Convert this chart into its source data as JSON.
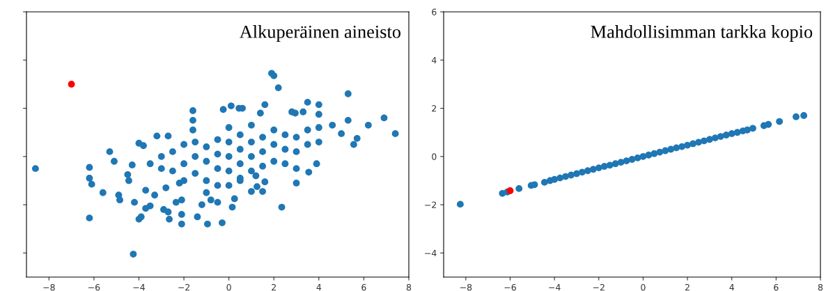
{
  "chart_data": [
    {
      "type": "scatter",
      "title": "Alkuperäinen aineisto",
      "xlim": [
        -9,
        8
      ],
      "ylim": [
        -5,
        6
      ],
      "xticks": [
        -8,
        -6,
        -4,
        -2,
        0,
        2,
        4,
        6,
        8
      ],
      "yticks": [
        -4,
        -2,
        0,
        2,
        4,
        6
      ],
      "tick_labels": "x",
      "grid": false,
      "legend": false,
      "marker": "circle",
      "series": [
        {
          "color": "#1f77b4",
          "x": [
            -8.6,
            -6.2,
            -6.2,
            -6.1,
            -6.2,
            -5.6,
            -5.3,
            -5.1,
            -4.9,
            -4.85,
            -4.5,
            -4.45,
            -4.3,
            -4.25,
            -4.2,
            -4.0,
            -3.9,
            -3.7,
            -3.5,
            -3.2,
            -2.7,
            -2.9,
            -2.7,
            -2.65,
            -2.35,
            -2.1,
            -2.1,
            -2.1,
            -1.6,
            -1.6,
            -1.6,
            -1.4,
            -0.95,
            -0.5,
            -0.3,
            0.15,
            0.25,
            2.35,
            1.9,
            2.0,
            2.2,
            3.5,
            4.0,
            4.0,
            5.3,
            5.3,
            6.2,
            6.9,
            7.4,
            5.7,
            5.55,
            5.0,
            4.6,
            4.0,
            3.9,
            3.55,
            3.0,
            3.0,
            1.5,
            1.6,
            1.0,
            1.25,
            -0.25,
            0.1,
            0.45,
            0.6,
            1.6,
            1.4,
            2.8,
            2.95,
            3.3,
            -3.5,
            -3.0,
            -3.0,
            -2.5,
            -2.5,
            -2.0,
            -2.0,
            -2.0,
            -1.5,
            -1.5,
            -1.5,
            -1.0,
            -1.0,
            -1.0,
            -1.0,
            -0.5,
            -0.5,
            -0.5,
            -0.5,
            0.0,
            0.0,
            0.0,
            0.0,
            0.0,
            0.5,
            0.5,
            0.5,
            0.5,
            1.0,
            1.0,
            1.0,
            1.0,
            1.5,
            1.5,
            1.5,
            2.0,
            2.0,
            2.0,
            2.5,
            2.5,
            2.5,
            3.0,
            3.0,
            3.5,
            3.5,
            4.0,
            -4.0,
            -3.8,
            -3.7,
            -3.3,
            -2.8,
            -2.2,
            -1.2,
            -0.8,
            0.5,
            1.2
          ],
          "values": [
            -0.5,
            -0.45,
            -0.9,
            -1.15,
            -2.55,
            -1.5,
            0.2,
            -0.2,
            -1.6,
            -1.8,
            -0.75,
            -1.0,
            -0.35,
            -4.05,
            -1.9,
            -2.6,
            -2.5,
            -2.15,
            -2.05,
            0.85,
            0.85,
            -2.2,
            -2.3,
            -2.6,
            -1.9,
            -1.8,
            -2.8,
            -2.4,
            1.9,
            1.5,
            1.1,
            -2.5,
            -2.8,
            -1.9,
            -2.75,
            -2.1,
            -1.75,
            -2.1,
            3.45,
            3.35,
            2.85,
            2.25,
            2.15,
            1.75,
            2.6,
            1.5,
            1.3,
            1.6,
            0.95,
            0.75,
            0.5,
            0.95,
            1.3,
            0.6,
            -0.3,
            -0.65,
            -0.5,
            -1.1,
            -1.45,
            -1.05,
            -1.45,
            -1.25,
            1.95,
            2.1,
            2.0,
            2.0,
            2.15,
            1.8,
            1.85,
            1.8,
            1.85,
            -0.3,
            -0.5,
            0.0,
            -0.6,
            0.2,
            -0.3,
            0.5,
            -1.0,
            0.0,
            -0.7,
            0.6,
            -0.2,
            0.4,
            -1.0,
            -1.5,
            0.1,
            -0.5,
            0.7,
            -1.2,
            0.0,
            -0.6,
            0.6,
            1.2,
            -1.2,
            0.3,
            -0.3,
            0.9,
            -0.9,
            0.0,
            0.6,
            -0.6,
            1.3,
            0.2,
            0.8,
            -0.4,
            0.5,
            -0.2,
            1.1,
            0.3,
            0.9,
            -0.3,
            0.2,
            0.8,
            0.5,
            1.1,
            1.2,
            0.55,
            0.45,
            -1.4,
            -1.6,
            -1.3,
            -1.1,
            -2.0,
            -1.8,
            -1.0,
            -0.8
          ]
        },
        {
          "color": "#ff0000",
          "x": [
            -7.0
          ],
          "values": [
            3.0
          ]
        }
      ]
    },
    {
      "type": "scatter",
      "title": "Mahdollisimman tarkka kopio",
      "xlim": [
        -9,
        8
      ],
      "ylim": [
        -5,
        6
      ],
      "xticks": [
        -8,
        -6,
        -4,
        -2,
        0,
        2,
        4,
        6,
        8
      ],
      "yticks": [
        -4,
        -2,
        0,
        2,
        4,
        6
      ],
      "grid": false,
      "legend": false,
      "marker": "circle",
      "series": [
        {
          "color": "#1f77b4",
          "x": [
            -8.25,
            -6.35,
            -6.13,
            -5.6,
            -5.05,
            -4.9,
            -4.45,
            -4.2,
            -4.0,
            -3.75,
            -3.5,
            -3.25,
            -3.0,
            -2.75,
            -2.5,
            -2.25,
            -2.0,
            -1.75,
            -1.5,
            -1.25,
            -1.0,
            -0.75,
            -0.5,
            -0.25,
            0.0,
            0.25,
            0.5,
            0.75,
            1.0,
            1.25,
            1.5,
            1.75,
            2.0,
            2.25,
            2.5,
            2.75,
            3.0,
            3.25,
            3.5,
            3.75,
            4.0,
            4.25,
            4.5,
            4.7,
            4.95,
            5.45,
            5.65,
            6.15,
            6.9,
            7.25
          ],
          "values": [
            -1.98,
            -1.53,
            -1.47,
            -1.33,
            -1.2,
            -1.17,
            -1.07,
            -1.0,
            -0.95,
            -0.89,
            -0.83,
            -0.77,
            -0.71,
            -0.65,
            -0.59,
            -0.53,
            -0.47,
            -0.41,
            -0.36,
            -0.3,
            -0.24,
            -0.18,
            -0.12,
            -0.06,
            0.0,
            0.06,
            0.12,
            0.18,
            0.24,
            0.3,
            0.36,
            0.41,
            0.47,
            0.53,
            0.59,
            0.65,
            0.71,
            0.77,
            0.83,
            0.89,
            0.95,
            1.0,
            1.06,
            1.1,
            1.17,
            1.28,
            1.33,
            1.45,
            1.65,
            1.7
          ]
        },
        {
          "color": "#ff0000",
          "x": [
            -6.0
          ],
          "values": [
            -1.42
          ]
        }
      ]
    }
  ]
}
